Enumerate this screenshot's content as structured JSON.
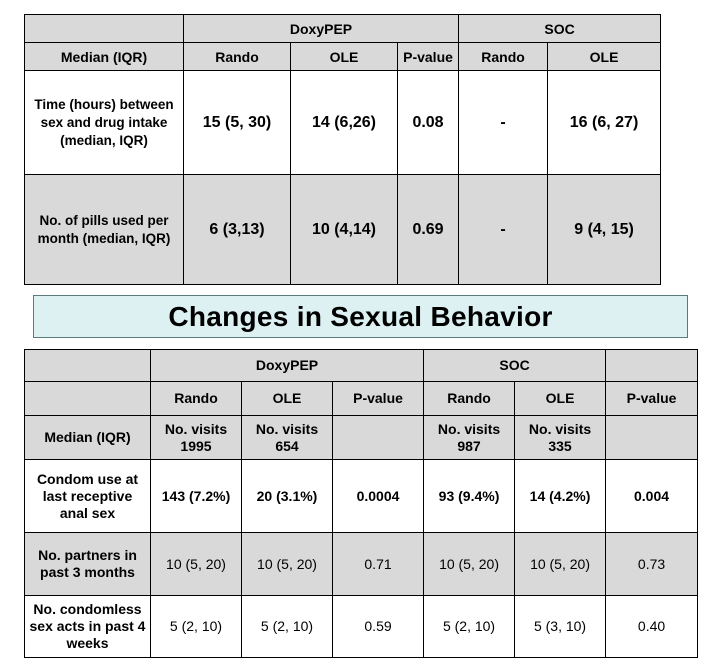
{
  "table1": {
    "group_doxy": "DoxyPEP",
    "group_soc": "SOC",
    "header_median": "Median (IQR)",
    "col_rando1": "Rando",
    "col_ole1": "OLE",
    "col_pvalue": "P-value",
    "col_rando2": "Rando",
    "col_ole2": "OLE",
    "rows": [
      {
        "label": "Time (hours) between sex and  drug intake (median, IQR)",
        "doxy_rando": "15 (5, 30)",
        "doxy_ole": "14 (6,26)",
        "pvalue": "0.08",
        "soc_rando": "-",
        "soc_ole": "16 (6, 27)"
      },
      {
        "label": "No. of pills used per month (median, IQR)",
        "doxy_rando": "6 (3,13)",
        "doxy_ole": "10 (4,14)",
        "pvalue": "0.69",
        "soc_rando": "-",
        "soc_ole": "9 (4, 15)"
      }
    ]
  },
  "banner": {
    "title": "Changes in Sexual Behavior"
  },
  "table2": {
    "group_doxy": "DoxyPEP",
    "group_soc": "SOC",
    "col_rando1": "Rando",
    "col_ole1": "OLE",
    "col_pvalue1": "P-value",
    "col_rando2": "Rando",
    "col_ole2": "OLE",
    "col_pvalue2": "P-value",
    "header_median": "Median (IQR)",
    "visits_doxy_rando": "No. visits 1995",
    "visits_doxy_ole": "No. visits 654",
    "visits_soc_rando": "No. visits 987",
    "visits_soc_ole": "No. visits 335",
    "rows": [
      {
        "label": "Condom use at last receptive anal sex",
        "doxy_rando": "143 (7.2%)",
        "doxy_ole": "20 (3.1%)",
        "pvalue1": "0.0004",
        "soc_rando": "93 (9.4%)",
        "soc_ole": "14 (4.2%)",
        "pvalue2": "0.004"
      },
      {
        "label": "No. partners in past 3 months",
        "doxy_rando": "10 (5, 20)",
        "doxy_ole": "10 (5, 20)",
        "pvalue1": "0.71",
        "soc_rando": "10 (5, 20)",
        "soc_ole": "10 (5, 20)",
        "pvalue2": "0.73"
      },
      {
        "label": "No. condomless sex acts in past 4 weeks",
        "doxy_rando": "5 (2, 10)",
        "doxy_ole": "5 (2, 10)",
        "pvalue1": "0.59",
        "soc_rando": "5 (2, 10)",
        "soc_ole": "5 (3, 10)",
        "pvalue2": "0.40"
      }
    ]
  }
}
